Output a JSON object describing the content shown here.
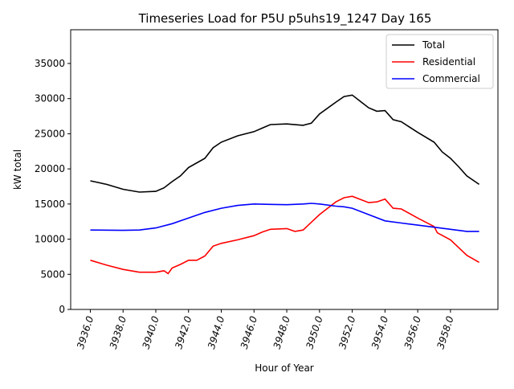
{
  "chart_data": {
    "type": "line",
    "title": "Timeseries Load for P5U p5uhs19_1247  Day 165",
    "xlabel": "Hour of Year",
    "ylabel": "kW total",
    "xlim": [
      3934.8,
      3960.9
    ],
    "ylim": [
      0,
      39800
    ],
    "xticks": [
      3936,
      3938,
      3940,
      3942,
      3944,
      3946,
      3948,
      3950,
      3952,
      3954,
      3956,
      3958
    ],
    "xtick_labels": [
      "3936.0",
      "3938.0",
      "3940.0",
      "3942.0",
      "3944.0",
      "3946.0",
      "3948.0",
      "3950.0",
      "3952.0",
      "3954.0",
      "3956.0",
      "3958.0"
    ],
    "yticks": [
      0,
      5000,
      10000,
      15000,
      20000,
      25000,
      30000,
      35000
    ],
    "ytick_labels": [
      "0",
      "5000",
      "10000",
      "15000",
      "20000",
      "25000",
      "30000",
      "35000"
    ],
    "legend_position": "top-right",
    "grid": false,
    "series": [
      {
        "name": "Total",
        "color": "#000000",
        "x": [
          3936,
          3937,
          3938,
          3939,
          3940,
          3940.5,
          3941,
          3941.5,
          3942,
          3943,
          3943.5,
          3944,
          3945,
          3946,
          3946.5,
          3947,
          3948,
          3949,
          3949.5,
          3950,
          3951,
          3951.5,
          3952,
          3953,
          3953.5,
          3954,
          3954.5,
          3955,
          3956,
          3957,
          3957.5,
          3958,
          3958.5,
          3959,
          3959.75
        ],
        "y": [
          18300,
          17800,
          17100,
          16700,
          16800,
          17300,
          18200,
          19000,
          20200,
          21500,
          23000,
          23800,
          24700,
          25300,
          25800,
          26300,
          26400,
          26200,
          26500,
          27800,
          29500,
          30300,
          30500,
          28700,
          28200,
          28300,
          27000,
          26700,
          25200,
          23800,
          22400,
          21500,
          20300,
          19000,
          17800
        ]
      },
      {
        "name": "Residential",
        "color": "#ff0000",
        "x": [
          3936,
          3937,
          3938,
          3939,
          3940,
          3940.5,
          3940.75,
          3941,
          3941.5,
          3942,
          3942.5,
          3943,
          3943.5,
          3944,
          3945,
          3946,
          3946.5,
          3947,
          3948,
          3948.5,
          3949,
          3949.5,
          3950,
          3951,
          3951.5,
          3952,
          3953,
          3953.5,
          3954,
          3954.5,
          3955,
          3956,
          3957,
          3957.2,
          3958,
          3958.5,
          3959,
          3959.75
        ],
        "y": [
          7000,
          6300,
          5700,
          5300,
          5300,
          5500,
          5100,
          5900,
          6400,
          7000,
          7000,
          7600,
          9000,
          9400,
          9900,
          10500,
          11000,
          11400,
          11500,
          11100,
          11300,
          12400,
          13500,
          15300,
          15900,
          16100,
          15200,
          15300,
          15700,
          14400,
          14300,
          13000,
          11800,
          10900,
          9900,
          8800,
          7700,
          6700
        ]
      },
      {
        "name": "Commercial",
        "color": "#0000ff",
        "x": [
          3936,
          3938,
          3939,
          3940,
          3941,
          3942,
          3943,
          3944,
          3945,
          3946,
          3947,
          3948,
          3949,
          3949.5,
          3950,
          3951,
          3951.5,
          3952,
          3953,
          3954,
          3955,
          3956,
          3957,
          3958,
          3959,
          3959.75
        ],
        "y": [
          11300,
          11250,
          11300,
          11600,
          12200,
          13000,
          13800,
          14400,
          14800,
          15000,
          14950,
          14900,
          15000,
          15100,
          15000,
          14700,
          14600,
          14400,
          13500,
          12600,
          12300,
          12000,
          11700,
          11400,
          11100,
          11100
        ]
      }
    ]
  }
}
